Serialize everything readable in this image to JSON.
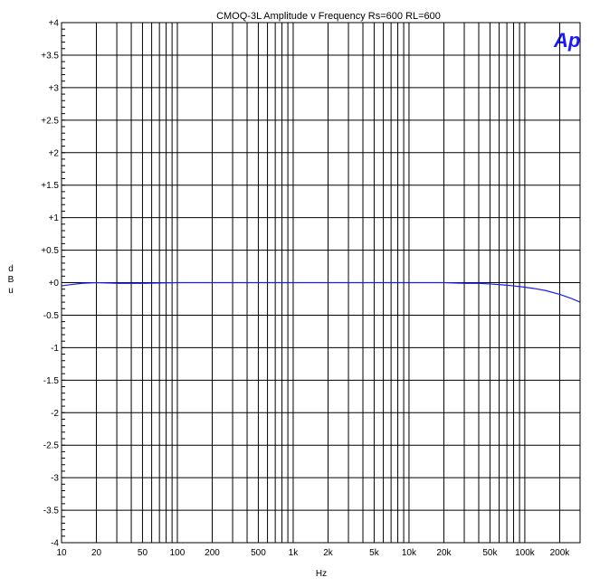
{
  "chart_data": {
    "type": "line",
    "title": "CMOQ-3L  Amplitude v Frequency Rs=600 RL=600",
    "xlabel": "Hz",
    "ylabel": "dBu",
    "xscale": "log",
    "xlim": [
      10,
      300000
    ],
    "ylim": [
      -4,
      4
    ],
    "grid": true,
    "line_color": "#1a1aff",
    "logo": "Ap",
    "y_ticks": [
      {
        "value": 4,
        "label": "+4"
      },
      {
        "value": 3.5,
        "label": "+3.5"
      },
      {
        "value": 3,
        "label": "+3"
      },
      {
        "value": 2.5,
        "label": "+2.5"
      },
      {
        "value": 2,
        "label": "+2"
      },
      {
        "value": 1.5,
        "label": "+1.5"
      },
      {
        "value": 1,
        "label": "+1"
      },
      {
        "value": 0.5,
        "label": "+0.5"
      },
      {
        "value": 0,
        "label": "+0"
      },
      {
        "value": -0.5,
        "label": "-0.5"
      },
      {
        "value": -1,
        "label": "-1"
      },
      {
        "value": -1.5,
        "label": "-1.5"
      },
      {
        "value": -2,
        "label": "-2"
      },
      {
        "value": -2.5,
        "label": "-2.5"
      },
      {
        "value": -3,
        "label": "-3"
      },
      {
        "value": -3.5,
        "label": "-3.5"
      },
      {
        "value": -4,
        "label": "-4"
      }
    ],
    "x_ticks": [
      {
        "value": 10,
        "label": "10"
      },
      {
        "value": 20,
        "label": "20"
      },
      {
        "value": 50,
        "label": "50"
      },
      {
        "value": 100,
        "label": "100"
      },
      {
        "value": 200,
        "label": "200"
      },
      {
        "value": 500,
        "label": "500"
      },
      {
        "value": 1000,
        "label": "1k"
      },
      {
        "value": 2000,
        "label": "2k"
      },
      {
        "value": 5000,
        "label": "5k"
      },
      {
        "value": 10000,
        "label": "10k"
      },
      {
        "value": 20000,
        "label": "20k"
      },
      {
        "value": 50000,
        "label": "50k"
      },
      {
        "value": 100000,
        "label": "100k"
      },
      {
        "value": 200000,
        "label": "200k"
      }
    ],
    "series": [
      {
        "x": [
          10,
          12,
          15,
          20,
          30,
          50,
          100,
          200,
          500,
          1000,
          2000,
          5000,
          10000,
          20000,
          30000,
          40000,
          50000,
          60000,
          70000,
          80000,
          100000,
          120000,
          150000,
          200000,
          250000,
          300000
        ],
        "y": [
          -0.05,
          -0.03,
          -0.01,
          0.0,
          -0.01,
          -0.01,
          0.0,
          0.0,
          0.0,
          0.0,
          0.0,
          0.0,
          0.0,
          0.0,
          -0.01,
          -0.01,
          -0.02,
          -0.03,
          -0.04,
          -0.05,
          -0.07,
          -0.09,
          -0.12,
          -0.18,
          -0.24,
          -0.3
        ]
      }
    ]
  }
}
